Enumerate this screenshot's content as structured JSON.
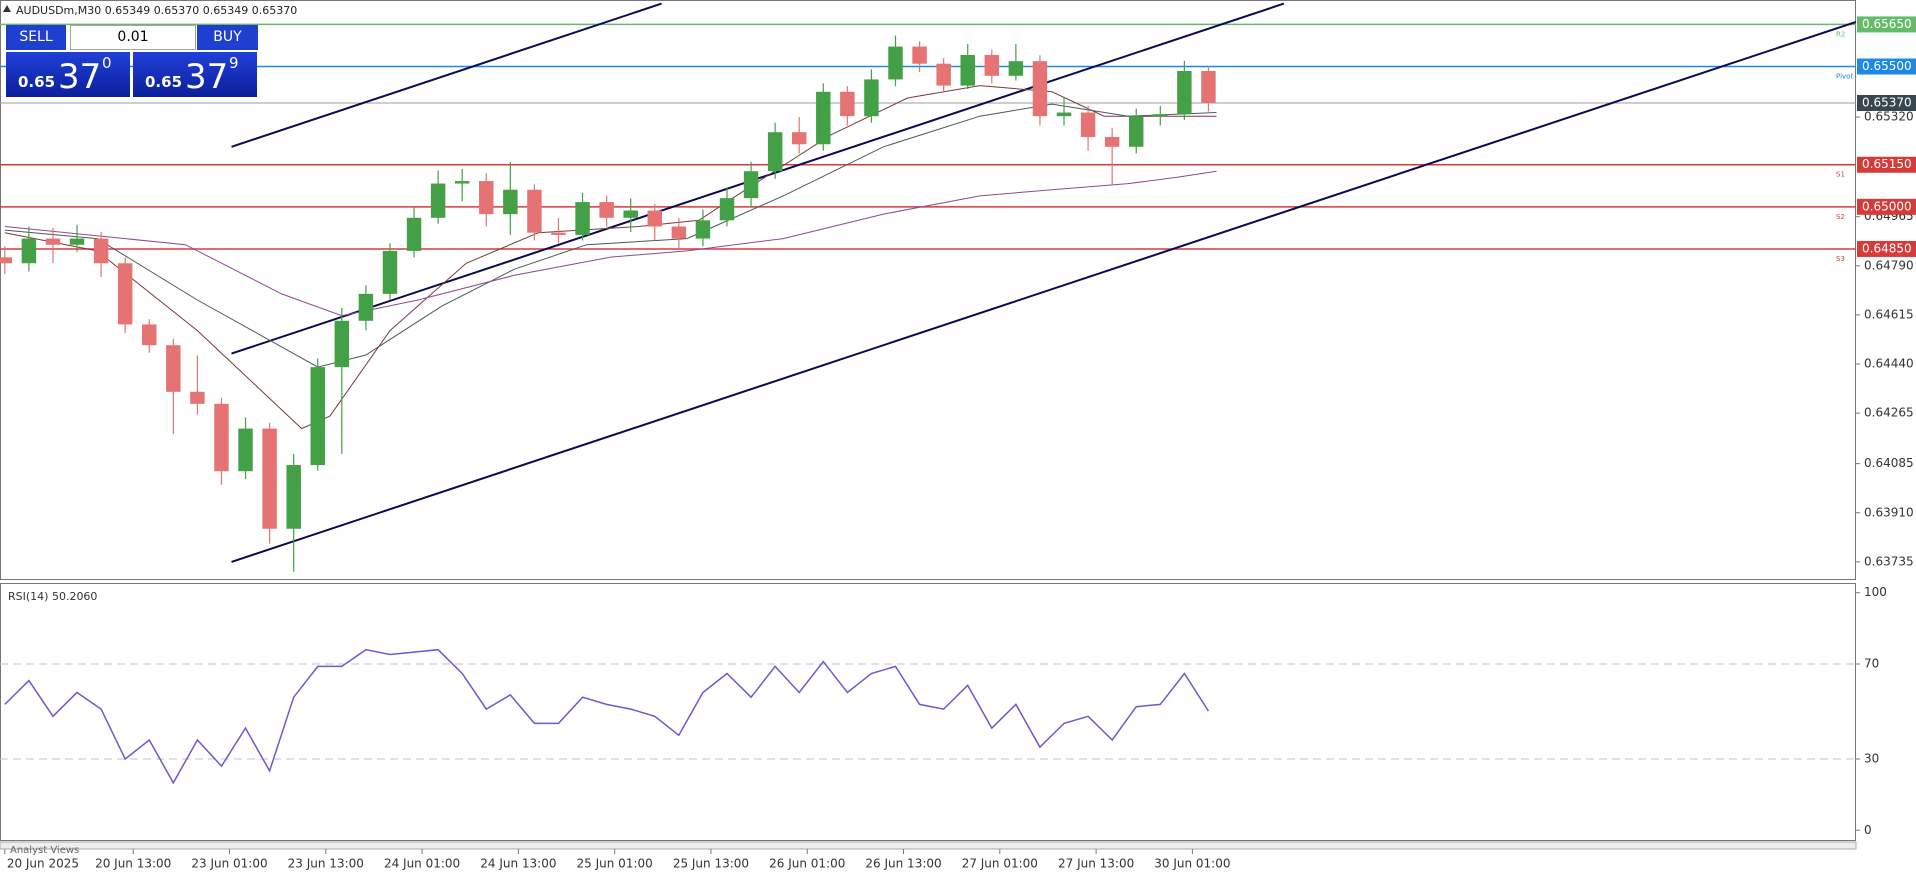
{
  "header": "AUDUSDm,M30  0.65349 0.65370 0.65349 0.65370",
  "trade_panel": {
    "sell": "SELL",
    "buy": "BUY",
    "lot": "0.01",
    "sell_price": {
      "small": "0.65",
      "big": "37",
      "sup": "0"
    },
    "buy_price": {
      "small": "0.65",
      "big": "37",
      "sup": "9"
    }
  },
  "footer": "Analyst Views",
  "chart_data": [
    {
      "type": "candlestick",
      "up_color": "#43a047",
      "down_color": "#e57373",
      "x": [
        0,
        6,
        12,
        18,
        24,
        30,
        36,
        42,
        48,
        54,
        60,
        66,
        72,
        78,
        84,
        90,
        96,
        102,
        108,
        114,
        120,
        126,
        132,
        138,
        144,
        150,
        156,
        162,
        168,
        174,
        180,
        186,
        192,
        198,
        204,
        210,
        216,
        222,
        228,
        234,
        240,
        246,
        252,
        258,
        264,
        270,
        276,
        282,
        288,
        294,
        300
      ],
      "open": [
        0.6482,
        0.64799,
        0.64887,
        0.64865,
        0.64887,
        0.64799,
        0.64581,
        0.64507,
        0.64341,
        0.64298,
        0.64058,
        0.6421,
        0.63853,
        0.6408,
        0.64429,
        0.64594,
        0.6469,
        0.64843,
        0.64961,
        0.65083,
        0.65092,
        0.64974,
        0.65061,
        0.64908,
        0.649,
        0.65017,
        0.64961,
        0.64987,
        0.6493,
        0.64887,
        0.64952,
        0.65031,
        0.65127,
        0.65266,
        0.65223,
        0.6541,
        0.65323,
        0.65454,
        0.65571,
        0.6551,
        0.65432,
        0.65541,
        0.65467,
        0.65519,
        0.65323,
        0.65336,
        0.65249,
        0.65214,
        0.65323,
        0.6533,
        0.65484
      ],
      "high": [
        0.6486,
        0.6493,
        0.64925,
        0.64935,
        0.6491,
        0.6482,
        0.646,
        0.6453,
        0.6447,
        0.6432,
        0.6425,
        0.6423,
        0.6412,
        0.6446,
        0.6464,
        0.6472,
        0.6487,
        0.65,
        0.6513,
        0.65135,
        0.6512,
        0.6516,
        0.6508,
        0.6496,
        0.6505,
        0.6504,
        0.6503,
        0.6501,
        0.6496,
        0.6499,
        0.6507,
        0.6516,
        0.653,
        0.6532,
        0.6544,
        0.6543,
        0.6549,
        0.6561,
        0.6559,
        0.6553,
        0.6558,
        0.6556,
        0.6558,
        0.6554,
        0.6539,
        0.6536,
        0.6528,
        0.6535,
        0.6536,
        0.6552,
        0.655
      ],
      "low": [
        0.6476,
        0.6477,
        0.648,
        0.6484,
        0.6475,
        0.6455,
        0.6448,
        0.6419,
        0.6426,
        0.6401,
        0.6403,
        0.638,
        0.637,
        0.6406,
        0.6412,
        0.6456,
        0.6467,
        0.6482,
        0.6494,
        0.6502,
        0.6493,
        0.649,
        0.6488,
        0.6487,
        0.6488,
        0.6493,
        0.6491,
        0.6488,
        0.6485,
        0.6486,
        0.6493,
        0.65,
        0.651,
        0.6519,
        0.652,
        0.6529,
        0.653,
        0.6543,
        0.6548,
        0.6541,
        0.6542,
        0.6544,
        0.6545,
        0.6529,
        0.6529,
        0.652,
        0.6508,
        0.6519,
        0.6529,
        0.6531,
        0.6534
      ],
      "close": [
        0.64799,
        0.64887,
        0.64865,
        0.64887,
        0.64799,
        0.64581,
        0.64507,
        0.64341,
        0.64298,
        0.64058,
        0.6421,
        0.63853,
        0.6408,
        0.64429,
        0.64594,
        0.6469,
        0.64843,
        0.64961,
        0.65083,
        0.65092,
        0.64974,
        0.65061,
        0.64908,
        0.649,
        0.65017,
        0.64961,
        0.64987,
        0.6493,
        0.64887,
        0.64952,
        0.65031,
        0.65127,
        0.65266,
        0.65223,
        0.6541,
        0.65323,
        0.65454,
        0.65571,
        0.6551,
        0.65432,
        0.65541,
        0.65467,
        0.65519,
        0.65323,
        0.65336,
        0.65249,
        0.65214,
        0.65323,
        0.6533,
        0.65484,
        0.6537
      ],
      "moving_averages": [
        {
          "color": "#7a3b3b",
          "x": [
            0,
            23,
            48,
            74,
            81,
            96,
            115,
            133,
            158,
            173,
            187,
            206,
            225,
            243,
            261,
            274,
            302
          ],
          "values": [
            0.64908,
            0.64843,
            0.64559,
            0.6421,
            0.64254,
            0.64559,
            0.64799,
            0.64908,
            0.6493,
            0.64952,
            0.65083,
            0.65257,
            0.65388,
            0.65432,
            0.6541,
            0.65323,
            0.65323
          ]
        },
        {
          "color": "#4a5a5a",
          "x": [
            0,
            23,
            48,
            78,
            90,
            109,
            127,
            145,
            170,
            194,
            219,
            243,
            261,
            280,
            302
          ],
          "values": [
            0.64917,
            0.64887,
            0.64668,
            0.64429,
            0.64472,
            0.64647,
            0.64778,
            0.64865,
            0.64887,
            0.65039,
            0.65214,
            0.65323,
            0.65366,
            0.65323,
            0.65336
          ]
        },
        {
          "color": "#8e4a8e",
          "x": [
            0,
            45,
            69,
            84,
            103,
            127,
            151,
            170,
            194,
            219,
            243,
            261,
            280,
            292,
            302
          ],
          "values": [
            0.6493,
            0.64865,
            0.6469,
            0.64612,
            0.64668,
            0.64756,
            0.64821,
            0.64843,
            0.64887,
            0.64974,
            0.65039,
            0.65061,
            0.65083,
            0.65105,
            0.65127
          ]
        }
      ],
      "trendlines": [
        {
          "color": "#0a0a50",
          "x": [
            56.5,
            163.7
          ],
          "values": [
            0.65214,
            0.65724
          ]
        },
        {
          "color": "#0a0a50",
          "x": [
            56.5,
            318.8
          ],
          "values": [
            0.64477,
            0.65724
          ]
        },
        {
          "color": "#0a0a50",
          "x": [
            56.5,
            461.4
          ],
          "values": [
            0.63735,
            0.65659
          ]
        }
      ],
      "levels": [
        {
          "value": 0.6565,
          "label": "0.65650",
          "tag": "R2",
          "color": "#66bb6a"
        },
        {
          "value": 0.655,
          "label": "0.65500",
          "tag": "Pivot",
          "color": "#1e88e5"
        },
        {
          "value": 0.6515,
          "label": "0.65150",
          "tag": "S1",
          "color": "#d63b3b"
        },
        {
          "value": 0.65,
          "label": "0.65000",
          "tag": "S2",
          "color": "#d63b3b"
        },
        {
          "value": 0.6485,
          "label": "0.64850",
          "tag": "S3",
          "color": "#d63b3b"
        }
      ],
      "current_price": {
        "value": 0.6537,
        "label": "0.65370",
        "color": "#37474f"
      },
      "xlim": [
        -1.2,
        461.4
      ],
      "ylim": [
        0.63674,
        0.65737
      ],
      "yticks": [
        {
          "value": 0.6532,
          "label": "0.65320"
        },
        0.64965,
        {
          "value": 0.6479,
          "label": "0.64790"
        },
        0.64615,
        {
          "value": 0.6444,
          "label": "0.64440"
        },
        0.64265,
        0.64085,
        {
          "value": 0.6391,
          "label": "0.63910"
        },
        0.63735
      ],
      "xticks": [
        {
          "value": 0,
          "label": "20 Jun 2025"
        },
        {
          "value": 32,
          "label": "20 Jun 13:00"
        },
        {
          "value": 56,
          "label": "23 Jun 01:00"
        },
        {
          "value": 80,
          "label": "23 Jun 13:00"
        },
        {
          "value": 104,
          "label": "24 Jun 01:00"
        },
        {
          "value": 128,
          "label": "24 Jun 13:00"
        },
        {
          "value": 152,
          "label": "25 Jun 01:00"
        },
        {
          "value": 176,
          "label": "25 Jun 13:00"
        },
        {
          "value": 200,
          "label": "26 Jun 01:00"
        },
        {
          "value": 224,
          "label": "26 Jun 13:00"
        },
        {
          "value": 248,
          "label": "27 Jun 01:00"
        },
        {
          "value": 272,
          "label": "27 Jun 13:00"
        },
        {
          "value": 296,
          "label": "30 Jun 01:00"
        }
      ]
    },
    {
      "type": "line",
      "title": "RSI(14) 50.2060",
      "x": [
        0,
        6,
        12,
        18,
        24,
        30,
        36,
        42,
        48,
        54,
        60,
        66,
        72,
        78,
        84,
        90,
        96,
        102,
        108,
        114,
        120,
        126,
        132,
        138,
        144,
        150,
        156,
        162,
        168,
        174,
        180,
        186,
        192,
        198,
        204,
        210,
        216,
        222,
        228,
        234,
        240,
        246,
        252,
        258,
        264,
        270,
        276,
        282,
        288,
        294,
        300
      ],
      "series": [
        {
          "color": "#6a5acd",
          "values": [
            53,
            63,
            48,
            58,
            51,
            30,
            38,
            20,
            38,
            27,
            43,
            25,
            56,
            69,
            69,
            76,
            74,
            75,
            76,
            66,
            51,
            57,
            45,
            45,
            56,
            53,
            51,
            48,
            40,
            58,
            66,
            56,
            69,
            58,
            71,
            58,
            66,
            69,
            53,
            51,
            61,
            43,
            53,
            35,
            45,
            48,
            38,
            52,
            53,
            66,
            50.2
          ]
        }
      ],
      "levels": [
        70,
        30
      ],
      "level_color": "#d8b4d8",
      "xlim": [
        -1.2,
        461.4
      ],
      "ylim": [
        -4.1,
        104.1
      ],
      "yticks": [
        100,
        70,
        30,
        0
      ]
    }
  ]
}
